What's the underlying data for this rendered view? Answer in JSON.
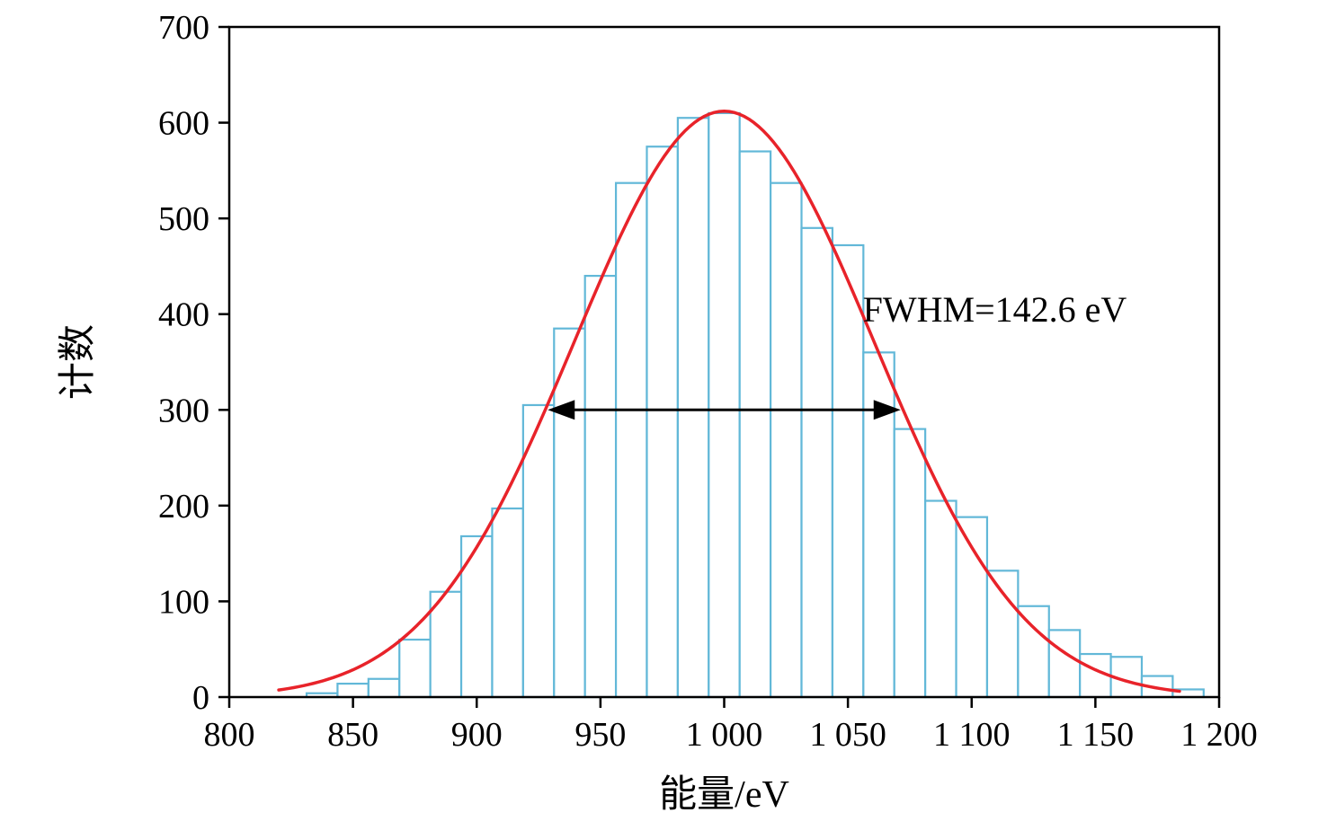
{
  "chart_data": {
    "type": "bar",
    "subtype": "histogram-with-gaussian-fit",
    "title": "",
    "xlabel": "能量/eV",
    "ylabel": "计数",
    "xlim": [
      800,
      1200
    ],
    "ylim": [
      0,
      700
    ],
    "x_ticks": [
      {
        "value": 800,
        "label": "800"
      },
      {
        "value": 850,
        "label": "850"
      },
      {
        "value": 900,
        "label": "900"
      },
      {
        "value": 950,
        "label": "950"
      },
      {
        "value": 1000,
        "label": "1 000"
      },
      {
        "value": 1050,
        "label": "1 050"
      },
      {
        "value": 1100,
        "label": "1 100"
      },
      {
        "value": 1150,
        "label": "1 150"
      },
      {
        "value": 1200,
        "label": "1 200"
      }
    ],
    "y_ticks": [
      {
        "value": 0,
        "label": "0"
      },
      {
        "value": 100,
        "label": "100"
      },
      {
        "value": 200,
        "label": "200"
      },
      {
        "value": 300,
        "label": "300"
      },
      {
        "value": 400,
        "label": "400"
      },
      {
        "value": 500,
        "label": "500"
      },
      {
        "value": 600,
        "label": "600"
      },
      {
        "value": 700,
        "label": "700"
      }
    ],
    "bin_width": 12.5,
    "bin_centers": [
      837.5,
      850,
      862.5,
      875,
      887.5,
      900,
      912.5,
      925,
      937.5,
      950,
      962.5,
      975,
      987.5,
      1000,
      1012.5,
      1025,
      1037.5,
      1050,
      1062.5,
      1075,
      1087.5,
      1100,
      1112.5,
      1125,
      1137.5,
      1150,
      1162.5,
      1175,
      1187.5
    ],
    "counts": [
      4,
      14,
      19,
      60,
      110,
      168,
      197,
      305,
      385,
      440,
      537,
      575,
      605,
      610,
      570,
      537,
      490,
      472,
      360,
      280,
      205,
      188,
      132,
      95,
      70,
      45,
      42,
      22,
      8
    ],
    "fit_curve": {
      "type": "gaussian",
      "amplitude": 612,
      "mean": 1000,
      "sigma": 60.56,
      "fwhm_eV": 142.6,
      "x_range": [
        820,
        1185
      ],
      "color": "#e8232a"
    },
    "fwhm_arrow": {
      "y": 300,
      "x1": 928.7,
      "x2": 1071.3,
      "color": "#000000"
    },
    "annotation": {
      "text": "FWHM=142.6 eV",
      "x": 1056,
      "y": 392
    },
    "bar_edge_color": "#62b8d8",
    "bar_fill_color": "#ffffff",
    "axis_color": "#000000",
    "grid": false,
    "legend": null
  }
}
